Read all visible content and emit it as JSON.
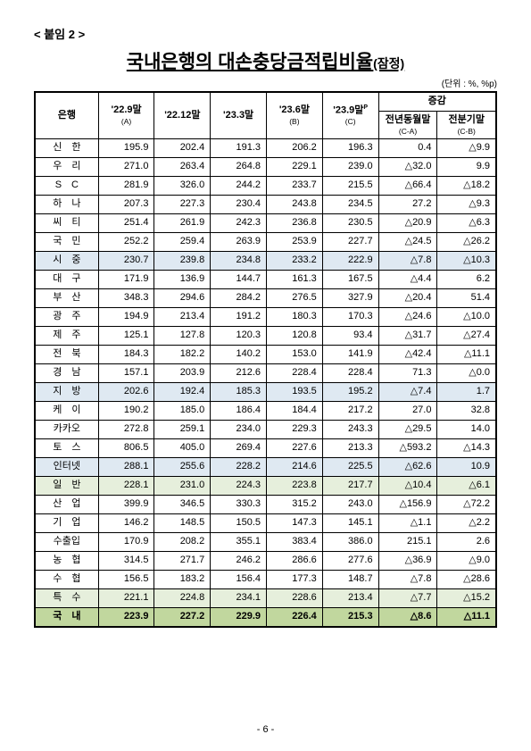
{
  "appendix": "< 붙임 2 >",
  "title": "국내은행의 대손충당금적립비율",
  "title_suffix": "(잠정)",
  "unit": "(단위 : %, %p)",
  "page_number": "- 6 -",
  "columns": {
    "bank": "은행",
    "c1": "'22.9말",
    "c1s": "(A)",
    "c2": "'22.12말",
    "c3": "'23.3말",
    "c4": "'23.6말",
    "c4s": "(B)",
    "c5": "'23.9말",
    "c5sup": "P",
    "c5s": "(C)",
    "diff": "증감",
    "d1": "전년동월말",
    "d1s": "(C-A)",
    "d2": "전분기말",
    "d2s": "(C-B)"
  },
  "rows": [
    {
      "bank": "신　한",
      "v": [
        "195.9",
        "202.4",
        "191.3",
        "206.2",
        "196.3",
        "0.4",
        "△9.9"
      ]
    },
    {
      "bank": "우　리",
      "v": [
        "271.0",
        "263.4",
        "264.8",
        "229.1",
        "239.0",
        "△32.0",
        "9.9"
      ]
    },
    {
      "bank": "S　C",
      "v": [
        "281.9",
        "326.0",
        "244.2",
        "233.7",
        "215.5",
        "△66.4",
        "△18.2"
      ]
    },
    {
      "bank": "하　나",
      "v": [
        "207.3",
        "227.3",
        "230.4",
        "243.8",
        "234.5",
        "27.2",
        "△9.3"
      ]
    },
    {
      "bank": "씨　티",
      "v": [
        "251.4",
        "261.9",
        "242.3",
        "236.8",
        "230.5",
        "△20.9",
        "△6.3"
      ]
    },
    {
      "bank": "국　민",
      "v": [
        "252.2",
        "259.4",
        "263.9",
        "253.9",
        "227.7",
        "△24.5",
        "△26.2"
      ]
    },
    {
      "bank": "시　중",
      "v": [
        "230.7",
        "239.8",
        "234.8",
        "233.2",
        "222.9",
        "△7.8",
        "△10.3"
      ],
      "cls": "hl-blue"
    },
    {
      "bank": "대　구",
      "v": [
        "171.9",
        "136.9",
        "144.7",
        "161.3",
        "167.5",
        "△4.4",
        "6.2"
      ]
    },
    {
      "bank": "부　산",
      "v": [
        "348.3",
        "294.6",
        "284.2",
        "276.5",
        "327.9",
        "△20.4",
        "51.4"
      ]
    },
    {
      "bank": "광　주",
      "v": [
        "194.9",
        "213.4",
        "191.2",
        "180.3",
        "170.3",
        "△24.6",
        "△10.0"
      ]
    },
    {
      "bank": "제　주",
      "v": [
        "125.1",
        "127.8",
        "120.3",
        "120.8",
        "93.4",
        "△31.7",
        "△27.4"
      ]
    },
    {
      "bank": "전　북",
      "v": [
        "184.3",
        "182.2",
        "140.2",
        "153.0",
        "141.9",
        "△42.4",
        "△11.1"
      ]
    },
    {
      "bank": "경　남",
      "v": [
        "157.1",
        "203.9",
        "212.6",
        "228.4",
        "228.4",
        "71.3",
        "△0.0"
      ]
    },
    {
      "bank": "지　방",
      "v": [
        "202.6",
        "192.4",
        "185.3",
        "193.5",
        "195.2",
        "△7.4",
        "1.7"
      ],
      "cls": "hl-blue"
    },
    {
      "bank": "케　이",
      "v": [
        "190.2",
        "185.0",
        "186.4",
        "184.4",
        "217.2",
        "27.0",
        "32.8"
      ]
    },
    {
      "bank": "카카오",
      "v": [
        "272.8",
        "259.1",
        "234.0",
        "229.3",
        "243.3",
        "△29.5",
        "14.0"
      ]
    },
    {
      "bank": "토　스",
      "v": [
        "806.5",
        "405.0",
        "269.4",
        "227.6",
        "213.3",
        "△593.2",
        "△14.3"
      ]
    },
    {
      "bank": "인터넷",
      "v": [
        "288.1",
        "255.6",
        "228.2",
        "214.6",
        "225.5",
        "△62.6",
        "10.9"
      ],
      "cls": "hl-blue"
    },
    {
      "bank": "일　반",
      "v": [
        "228.1",
        "231.0",
        "224.3",
        "223.8",
        "217.7",
        "△10.4",
        "△6.1"
      ],
      "cls": "hl-lgreen"
    },
    {
      "bank": "산　업",
      "v": [
        "399.9",
        "346.5",
        "330.3",
        "315.2",
        "243.0",
        "△156.9",
        "△72.2"
      ]
    },
    {
      "bank": "기　업",
      "v": [
        "146.2",
        "148.5",
        "150.5",
        "147.3",
        "145.1",
        "△1.1",
        "△2.2"
      ]
    },
    {
      "bank": "수출입",
      "v": [
        "170.9",
        "208.2",
        "355.1",
        "383.4",
        "386.0",
        "215.1",
        "2.6"
      ]
    },
    {
      "bank": "농　협",
      "v": [
        "314.5",
        "271.7",
        "246.2",
        "286.6",
        "277.6",
        "△36.9",
        "△9.0"
      ]
    },
    {
      "bank": "수　협",
      "v": [
        "156.5",
        "183.2",
        "156.4",
        "177.3",
        "148.7",
        "△7.8",
        "△28.6"
      ]
    },
    {
      "bank": "특　수",
      "v": [
        "221.1",
        "224.8",
        "234.1",
        "228.6",
        "213.4",
        "△7.7",
        "△15.2"
      ],
      "cls": "hl-lgreen"
    },
    {
      "bank": "국　내",
      "v": [
        "223.9",
        "227.2",
        "229.9",
        "226.4",
        "215.3",
        "△8.6",
        "△11.1"
      ],
      "cls": "hl-green"
    }
  ]
}
